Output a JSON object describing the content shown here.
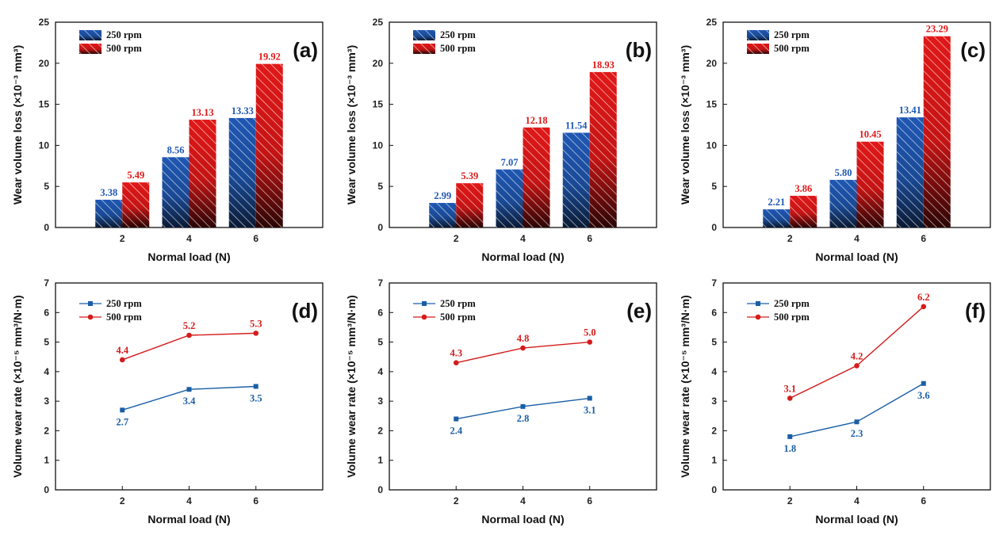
{
  "colors": {
    "series_250": "#1f57b3",
    "series_500": "#e01818",
    "line_250": "#1a5ea6",
    "line_500": "#d41c1c"
  },
  "chart_data": [
    {
      "id": "a",
      "panel_label": "(a)",
      "type": "bar",
      "xlabel": "Normal load (N)",
      "ylabel": "Wear volume loss (×10⁻³ mm³)",
      "ylim": [
        0,
        25
      ],
      "yticks": [
        "0",
        "5",
        "10",
        "15",
        "20",
        "25"
      ],
      "categories": [
        "2",
        "4",
        "6"
      ],
      "series": [
        {
          "name": "250 rpm",
          "values": [
            3.38,
            8.56,
            13.33
          ],
          "labels": [
            "3.38",
            "8.56",
            "13.33"
          ]
        },
        {
          "name": "500 rpm",
          "values": [
            5.49,
            13.13,
            19.92
          ],
          "labels": [
            "5.49",
            "13.13",
            "19.92"
          ]
        }
      ]
    },
    {
      "id": "b",
      "panel_label": "(b)",
      "type": "bar",
      "xlabel": "Normal load (N)",
      "ylabel": "Wear volume loss (×10⁻³ mm³)",
      "ylim": [
        0,
        25
      ],
      "yticks": [
        "0",
        "5",
        "10",
        "15",
        "20",
        "25"
      ],
      "categories": [
        "2",
        "4",
        "6"
      ],
      "series": [
        {
          "name": "250 rpm",
          "values": [
            2.99,
            7.07,
            11.54
          ],
          "labels": [
            "2.99",
            "7.07",
            "11.54"
          ]
        },
        {
          "name": "500 rpm",
          "values": [
            5.39,
            12.18,
            18.93
          ],
          "labels": [
            "5.39",
            "12.18",
            "18.93"
          ]
        }
      ]
    },
    {
      "id": "c",
      "panel_label": "(c)",
      "type": "bar",
      "xlabel": "Normal load (N)",
      "ylabel": "Wear volume loss (×10⁻³ mm³)",
      "ylim": [
        0,
        25
      ],
      "yticks": [
        "0",
        "5",
        "10",
        "15",
        "20",
        "25"
      ],
      "categories": [
        "2",
        "4",
        "6"
      ],
      "series": [
        {
          "name": "250 rpm",
          "values": [
            2.21,
            5.8,
            13.41
          ],
          "labels": [
            "2.21",
            "5.80",
            "13.41"
          ]
        },
        {
          "name": "500 rpm",
          "values": [
            3.86,
            10.45,
            23.29
          ],
          "labels": [
            "3.86",
            "10.45",
            "23.29"
          ]
        }
      ]
    },
    {
      "id": "d",
      "panel_label": "(d)",
      "type": "line",
      "xlabel": "Normal load (N)",
      "ylabel": "Volume wear rate (×10⁻⁵ mm³/N·m)",
      "ylim": [
        0,
        7
      ],
      "yticks": [
        "0",
        "1",
        "2",
        "3",
        "4",
        "5",
        "6",
        "7"
      ],
      "x": [
        2,
        4,
        6
      ],
      "xlim": [
        0,
        8
      ],
      "xticks": [
        "2",
        "4",
        "6"
      ],
      "series": [
        {
          "name": "250 rpm",
          "marker": "square",
          "values": [
            2.7,
            3.4,
            3.5
          ],
          "labels": [
            "2.7",
            "3.4",
            "3.5"
          ],
          "label_pos": "below"
        },
        {
          "name": "500 rpm",
          "marker": "circle",
          "values": [
            4.4,
            5.23,
            5.3
          ],
          "labels": [
            "4.4",
            "5.2",
            "5.3"
          ],
          "label_pos": "above"
        }
      ]
    },
    {
      "id": "e",
      "panel_label": "(e)",
      "type": "line",
      "xlabel": "Normal load (N)",
      "ylabel": "Volume wear rate (×10⁻⁵ mm³/N·m)",
      "ylim": [
        0,
        7
      ],
      "yticks": [
        "0",
        "1",
        "2",
        "3",
        "4",
        "5",
        "6",
        "7"
      ],
      "x": [
        2,
        4,
        6
      ],
      "xlim": [
        0,
        8
      ],
      "xticks": [
        "2",
        "4",
        "6"
      ],
      "series": [
        {
          "name": "250 rpm",
          "marker": "square",
          "values": [
            2.4,
            2.82,
            3.1
          ],
          "labels": [
            "2.4",
            "2.8",
            "3.1"
          ],
          "label_pos": "below"
        },
        {
          "name": "500 rpm",
          "marker": "circle",
          "values": [
            4.3,
            4.8,
            5.0
          ],
          "labels": [
            "4.3",
            "4.8",
            "5.0"
          ],
          "label_pos": "above"
        }
      ]
    },
    {
      "id": "f",
      "panel_label": "(f)",
      "type": "line",
      "xlabel": "Normal load (N)",
      "ylabel": "Volume wear rate (×10⁻⁵ mm³/N·m)",
      "ylim": [
        0,
        7
      ],
      "yticks": [
        "0",
        "1",
        "2",
        "3",
        "4",
        "5",
        "6",
        "7"
      ],
      "x": [
        2,
        4,
        6
      ],
      "xlim": [
        0,
        8
      ],
      "xticks": [
        "2",
        "4",
        "6"
      ],
      "series": [
        {
          "name": "250 rpm",
          "marker": "square",
          "values": [
            1.8,
            2.3,
            3.6
          ],
          "labels": [
            "1.8",
            "2.3",
            "3.6"
          ],
          "label_pos": "below"
        },
        {
          "name": "500 rpm",
          "marker": "circle",
          "values": [
            3.1,
            4.2,
            6.2
          ],
          "labels": [
            "3.1",
            "4.2",
            "6.2"
          ],
          "label_pos": "above"
        }
      ]
    }
  ]
}
